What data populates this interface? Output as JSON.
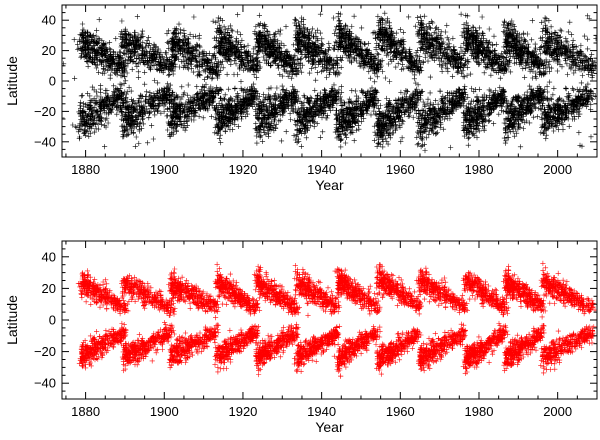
{
  "chart_data": [
    {
      "type": "scatter",
      "marker": "plus",
      "color": "#000000",
      "xlabel": "Year",
      "ylabel": "Latitude",
      "xlim": [
        1874,
        2010
      ],
      "ylim": [
        -50,
        50
      ],
      "xticks": [
        1880,
        1900,
        1920,
        1940,
        1960,
        1980,
        2000
      ],
      "xtick_labels": [
        "1880",
        "1900",
        "1920",
        "1940",
        "1960",
        "1980",
        "2000"
      ],
      "yticks": [
        -40,
        -20,
        0,
        20,
        40
      ],
      "ytick_labels": [
        "−40",
        "−20",
        "0",
        "20",
        "40"
      ],
      "grid": false,
      "cycles": [
        {
          "start": 1878.9,
          "end": 1890.2,
          "peak_lat": 35
        },
        {
          "start": 1889.6,
          "end": 1902.1,
          "peak_lat": 35
        },
        {
          "start": 1901.7,
          "end": 1913.6,
          "peak_lat": 34
        },
        {
          "start": 1913.6,
          "end": 1923.6,
          "peak_lat": 37
        },
        {
          "start": 1923.6,
          "end": 1933.7,
          "peak_lat": 38
        },
        {
          "start": 1933.7,
          "end": 1944.1,
          "peak_lat": 40
        },
        {
          "start": 1944.1,
          "end": 1954.3,
          "peak_lat": 42
        },
        {
          "start": 1954.3,
          "end": 1964.9,
          "peak_lat": 45
        },
        {
          "start": 1964.9,
          "end": 1976.5,
          "peak_lat": 42
        },
        {
          "start": 1976.5,
          "end": 1986.8,
          "peak_lat": 40
        },
        {
          "start": 1986.8,
          "end": 1996.4,
          "peak_lat": 38
        },
        {
          "start": 1996.4,
          "end": 2008.9,
          "peak_lat": 37
        }
      ]
    },
    {
      "type": "scatter",
      "marker": "plus",
      "color": "#ff0000",
      "xlabel": "Year",
      "ylabel": "Latitude",
      "xlim": [
        1874,
        2010
      ],
      "ylim": [
        -50,
        50
      ],
      "xticks": [
        1880,
        1900,
        1920,
        1940,
        1960,
        1980,
        2000
      ],
      "xtick_labels": [
        "1880",
        "1900",
        "1920",
        "1940",
        "1960",
        "1980",
        "2000"
      ],
      "yticks": [
        -40,
        -20,
        0,
        20,
        40
      ],
      "ytick_labels": [
        "−40",
        "−20",
        "0",
        "20",
        "40"
      ],
      "grid": false,
      "cycles": [
        {
          "start": 1878.9,
          "end": 1890.2,
          "peak_lat": 31
        },
        {
          "start": 1889.6,
          "end": 1902.1,
          "peak_lat": 31
        },
        {
          "start": 1901.7,
          "end": 1913.6,
          "peak_lat": 30
        },
        {
          "start": 1913.6,
          "end": 1923.6,
          "peak_lat": 31
        },
        {
          "start": 1923.6,
          "end": 1933.7,
          "peak_lat": 32
        },
        {
          "start": 1933.7,
          "end": 1944.1,
          "peak_lat": 33
        },
        {
          "start": 1944.1,
          "end": 1954.3,
          "peak_lat": 34
        },
        {
          "start": 1954.3,
          "end": 1964.9,
          "peak_lat": 36
        },
        {
          "start": 1964.9,
          "end": 1976.5,
          "peak_lat": 34
        },
        {
          "start": 1976.5,
          "end": 1986.8,
          "peak_lat": 34
        },
        {
          "start": 1986.8,
          "end": 1996.4,
          "peak_lat": 33
        },
        {
          "start": 1996.4,
          "end": 2008.9,
          "peak_lat": 32
        }
      ]
    }
  ]
}
